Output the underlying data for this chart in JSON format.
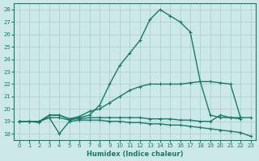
{
  "xlabel": "Humidex (Indice chaleur)",
  "ylabel": "",
  "bg_color": "#cce8e8",
  "grid_color": "#aacccc",
  "line_color": "#1a7a6a",
  "xlim": [
    -0.5,
    23.5
  ],
  "ylim": [
    17.5,
    28.5
  ],
  "xticks": [
    0,
    1,
    2,
    3,
    4,
    5,
    6,
    7,
    8,
    9,
    10,
    11,
    12,
    13,
    14,
    15,
    16,
    17,
    18,
    19,
    20,
    21,
    22,
    23
  ],
  "yticks": [
    18,
    19,
    20,
    21,
    22,
    23,
    24,
    25,
    26,
    27,
    28
  ],
  "lines": [
    {
      "x": [
        0,
        1,
        2,
        3,
        4,
        5,
        6,
        7,
        8,
        9,
        10,
        11,
        12,
        13,
        14,
        15,
        16,
        17,
        18,
        19,
        20,
        21,
        22
      ],
      "y": [
        19,
        19.0,
        19.0,
        19.3,
        19.3,
        19.1,
        19.3,
        19.5,
        20.3,
        22.0,
        23.5,
        24.5,
        25.5,
        27.2,
        28.0,
        27.5,
        27.0,
        26.2,
        22.2,
        19.5,
        19.3,
        19.3,
        19.2
      ],
      "marker": true,
      "markersize": 2.5,
      "linewidth": 1.0
    },
    {
      "x": [
        0,
        1,
        2,
        3,
        4,
        5,
        6,
        7,
        8,
        9,
        10,
        11,
        12,
        13,
        14,
        15,
        16,
        17,
        18,
        19,
        20,
        21,
        22
      ],
      "y": [
        19,
        19.0,
        19.0,
        19.5,
        19.5,
        19.2,
        19.4,
        19.8,
        20.0,
        20.5,
        21.0,
        21.5,
        21.8,
        22.0,
        22.0,
        22.0,
        22.0,
        22.1,
        22.2,
        22.2,
        22.1,
        22.0,
        19.3
      ],
      "marker": true,
      "markersize": 2.5,
      "linewidth": 1.0
    },
    {
      "x": [
        0,
        1,
        2,
        3,
        4,
        5,
        6,
        7,
        8,
        9,
        10,
        11,
        12,
        13,
        14,
        15,
        16,
        17,
        18,
        19,
        20,
        21,
        22,
        23
      ],
      "y": [
        19,
        19.0,
        19.0,
        19.3,
        18.0,
        19.0,
        19.1,
        19.1,
        19.1,
        19.0,
        19.0,
        18.9,
        18.9,
        18.8,
        18.8,
        18.7,
        18.7,
        18.6,
        18.5,
        18.4,
        18.3,
        18.2,
        18.1,
        17.8
      ],
      "marker": true,
      "markersize": 2.5,
      "linewidth": 1.0
    },
    {
      "x": [
        0,
        1,
        2,
        3,
        4,
        5,
        6,
        7,
        8,
        9,
        10,
        11,
        12,
        13,
        14,
        15,
        16,
        17,
        18,
        19,
        20,
        21,
        22,
        23
      ],
      "y": [
        19,
        19.0,
        18.9,
        19.5,
        19.5,
        19.2,
        19.2,
        19.3,
        19.3,
        19.3,
        19.3,
        19.3,
        19.3,
        19.2,
        19.2,
        19.2,
        19.1,
        19.1,
        19.0,
        19.0,
        19.5,
        19.3,
        19.3,
        19.3
      ],
      "marker": true,
      "markersize": 2.5,
      "linewidth": 1.0
    }
  ]
}
